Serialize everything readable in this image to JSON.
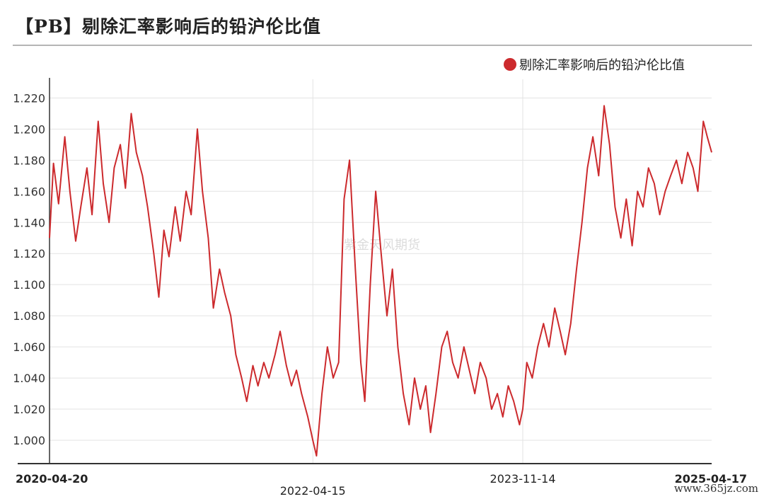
{
  "header": {
    "title": "【PB】剔除汇率影响后的铅沪伦比值"
  },
  "watermark": "紫金天风期货",
  "footer_watermark": "www.365jz.com",
  "colors": {
    "series": "#cc2a2d",
    "grid": "#e3e3e3",
    "axis": "#333333"
  },
  "chart_data": {
    "type": "line",
    "title": "【PB】剔除汇率影响后的铅沪伦比值",
    "xlabel": "",
    "ylabel": "",
    "legend_position": "top-right",
    "grid": true,
    "x_range": [
      "2020-04-20",
      "2025-04-17"
    ],
    "ylim": [
      0.985,
      1.232
    ],
    "yticks": [
      1.0,
      1.02,
      1.04,
      1.06,
      1.08,
      1.1,
      1.12,
      1.14,
      1.16,
      1.18,
      1.2,
      1.22
    ],
    "ytick_labels": [
      "1.000",
      "1.020",
      "1.040",
      "1.060",
      "1.080",
      "1.100",
      "1.120",
      "1.140",
      "1.160",
      "1.180",
      "1.200",
      "1.220"
    ],
    "xticks": [
      {
        "date": "2020-04-20",
        "label": "2020-04-20",
        "bold": true,
        "row": 0
      },
      {
        "date": "2022-04-15",
        "label": "2022-04-15",
        "bold": false,
        "row": 1
      },
      {
        "date": "2023-11-14",
        "label": "2023-11-14",
        "bold": false,
        "row": 0
      },
      {
        "date": "2025-04-17",
        "label": "2025-04-17",
        "bold": true,
        "row": 0
      }
    ],
    "series": [
      {
        "name": "剔除汇率影响后的铅沪伦比值",
        "points": [
          [
            "2020-04-20",
            1.13
          ],
          [
            "2020-05-01",
            1.178
          ],
          [
            "2020-05-15",
            1.152
          ],
          [
            "2020-06-01",
            1.195
          ],
          [
            "2020-06-15",
            1.16
          ],
          [
            "2020-07-01",
            1.128
          ],
          [
            "2020-07-15",
            1.15
          ],
          [
            "2020-08-01",
            1.175
          ],
          [
            "2020-08-15",
            1.145
          ],
          [
            "2020-09-01",
            1.205
          ],
          [
            "2020-09-15",
            1.165
          ],
          [
            "2020-10-01",
            1.14
          ],
          [
            "2020-10-15",
            1.175
          ],
          [
            "2020-11-01",
            1.19
          ],
          [
            "2020-11-15",
            1.162
          ],
          [
            "2020-12-01",
            1.21
          ],
          [
            "2020-12-15",
            1.185
          ],
          [
            "2021-01-01",
            1.17
          ],
          [
            "2021-01-15",
            1.15
          ],
          [
            "2021-02-01",
            1.12
          ],
          [
            "2021-02-15",
            1.092
          ],
          [
            "2021-03-01",
            1.135
          ],
          [
            "2021-03-15",
            1.118
          ],
          [
            "2021-04-01",
            1.15
          ],
          [
            "2021-04-15",
            1.128
          ],
          [
            "2021-05-01",
            1.16
          ],
          [
            "2021-05-15",
            1.145
          ],
          [
            "2021-06-01",
            1.2
          ],
          [
            "2021-06-15",
            1.16
          ],
          [
            "2021-07-01",
            1.13
          ],
          [
            "2021-07-15",
            1.085
          ],
          [
            "2021-08-01",
            1.11
          ],
          [
            "2021-08-15",
            1.095
          ],
          [
            "2021-09-01",
            1.08
          ],
          [
            "2021-09-15",
            1.055
          ],
          [
            "2021-10-01",
            1.04
          ],
          [
            "2021-10-15",
            1.025
          ],
          [
            "2021-11-01",
            1.048
          ],
          [
            "2021-11-15",
            1.035
          ],
          [
            "2021-12-01",
            1.05
          ],
          [
            "2021-12-15",
            1.04
          ],
          [
            "2022-01-01",
            1.055
          ],
          [
            "2022-01-15",
            1.07
          ],
          [
            "2022-02-01",
            1.048
          ],
          [
            "2022-02-15",
            1.035
          ],
          [
            "2022-03-01",
            1.045
          ],
          [
            "2022-03-15",
            1.03
          ],
          [
            "2022-04-01",
            1.015
          ],
          [
            "2022-04-15",
            1.0
          ],
          [
            "2022-04-25",
            0.99
          ],
          [
            "2022-05-10",
            1.03
          ],
          [
            "2022-05-25",
            1.06
          ],
          [
            "2022-06-10",
            1.04
          ],
          [
            "2022-06-25",
            1.05
          ],
          [
            "2022-07-10",
            1.155
          ],
          [
            "2022-07-25",
            1.18
          ],
          [
            "2022-08-10",
            1.11
          ],
          [
            "2022-08-25",
            1.05
          ],
          [
            "2022-09-05",
            1.025
          ],
          [
            "2022-09-20",
            1.1
          ],
          [
            "2022-10-05",
            1.16
          ],
          [
            "2022-10-20",
            1.12
          ],
          [
            "2022-11-05",
            1.08
          ],
          [
            "2022-11-20",
            1.11
          ],
          [
            "2022-12-05",
            1.06
          ],
          [
            "2022-12-20",
            1.03
          ],
          [
            "2023-01-05",
            1.01
          ],
          [
            "2023-01-20",
            1.04
          ],
          [
            "2023-02-05",
            1.02
          ],
          [
            "2023-02-20",
            1.035
          ],
          [
            "2023-03-05",
            1.005
          ],
          [
            "2023-03-20",
            1.03
          ],
          [
            "2023-04-05",
            1.06
          ],
          [
            "2023-04-20",
            1.07
          ],
          [
            "2023-05-05",
            1.05
          ],
          [
            "2023-05-20",
            1.04
          ],
          [
            "2023-06-05",
            1.06
          ],
          [
            "2023-06-20",
            1.045
          ],
          [
            "2023-07-05",
            1.03
          ],
          [
            "2023-07-20",
            1.05
          ],
          [
            "2023-08-05",
            1.04
          ],
          [
            "2023-08-20",
            1.02
          ],
          [
            "2023-09-05",
            1.03
          ],
          [
            "2023-09-20",
            1.015
          ],
          [
            "2023-10-05",
            1.035
          ],
          [
            "2023-10-20",
            1.025
          ],
          [
            "2023-11-05",
            1.01
          ],
          [
            "2023-11-14",
            1.02
          ],
          [
            "2023-11-25",
            1.05
          ],
          [
            "2023-12-10",
            1.04
          ],
          [
            "2023-12-25",
            1.06
          ],
          [
            "2024-01-10",
            1.075
          ],
          [
            "2024-01-25",
            1.06
          ],
          [
            "2024-02-10",
            1.085
          ],
          [
            "2024-02-25",
            1.07
          ],
          [
            "2024-03-10",
            1.055
          ],
          [
            "2024-03-25",
            1.075
          ],
          [
            "2024-04-10",
            1.11
          ],
          [
            "2024-04-25",
            1.14
          ],
          [
            "2024-05-10",
            1.175
          ],
          [
            "2024-05-25",
            1.195
          ],
          [
            "2024-06-10",
            1.17
          ],
          [
            "2024-06-25",
            1.215
          ],
          [
            "2024-07-10",
            1.19
          ],
          [
            "2024-07-25",
            1.15
          ],
          [
            "2024-08-10",
            1.13
          ],
          [
            "2024-08-25",
            1.155
          ],
          [
            "2024-09-10",
            1.125
          ],
          [
            "2024-09-25",
            1.16
          ],
          [
            "2024-10-10",
            1.15
          ],
          [
            "2024-10-25",
            1.175
          ],
          [
            "2024-11-10",
            1.165
          ],
          [
            "2024-11-25",
            1.145
          ],
          [
            "2024-12-10",
            1.16
          ],
          [
            "2024-12-25",
            1.17
          ],
          [
            "2025-01-10",
            1.18
          ],
          [
            "2025-01-25",
            1.165
          ],
          [
            "2025-02-10",
            1.185
          ],
          [
            "2025-02-25",
            1.175
          ],
          [
            "2025-03-10",
            1.16
          ],
          [
            "2025-03-25",
            1.205
          ],
          [
            "2025-04-05",
            1.195
          ],
          [
            "2025-04-17",
            1.185
          ]
        ]
      }
    ]
  }
}
